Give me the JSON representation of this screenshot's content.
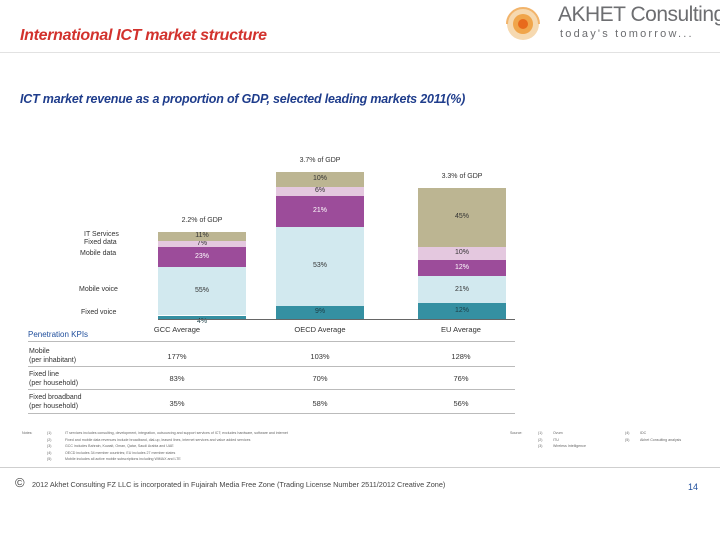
{
  "header": {
    "title": "International ICT market structure",
    "subtitle": "ICT market revenue as a proportion of GDP, selected leading markets 2011(%)",
    "logo_name": "AKHET Consulting",
    "logo_tagline": "today's tomorrow...",
    "logo_icon": "sun-logo-icon"
  },
  "colors": {
    "it_services": "#bcb592",
    "fixed_data": "#e4c8df",
    "mobile_data": "#9c4c9a",
    "mobile_voice": "#d2e9ef",
    "fixed_voice": "#3590a2",
    "title": "#d2322d",
    "subtitle": "#1f3d8c"
  },
  "chart_data": {
    "type": "bar",
    "stacked": true,
    "normalized": true,
    "categories": [
      "GCC Average",
      "OECD Average",
      "EU Average"
    ],
    "gdp_share_labels": [
      "2.2% of GDP",
      "3.7% of GDP",
      "3.3% of GDP"
    ],
    "gdp_share": [
      2.2,
      3.7,
      3.3
    ],
    "series": [
      {
        "name": "Fixed voice",
        "values": [
          4,
          9,
          12
        ],
        "labels": [
          "4%",
          "9%",
          "12%"
        ]
      },
      {
        "name": "Mobile voice",
        "values": [
          55,
          53,
          21
        ],
        "labels": [
          "55%",
          "53%",
          "21%"
        ]
      },
      {
        "name": "Mobile data",
        "values": [
          23,
          21,
          12
        ],
        "labels": [
          "23%",
          "21%",
          "12%"
        ]
      },
      {
        "name": "Fixed data",
        "values": [
          7,
          6,
          10
        ],
        "labels": [
          "7%",
          "6%",
          "10%"
        ]
      },
      {
        "name": "IT Services",
        "values": [
          11,
          10,
          45
        ],
        "labels": [
          "11%",
          "10%",
          "45%"
        ]
      }
    ],
    "legend_labels": [
      "IT Services",
      "Fixed data",
      "Mobile data",
      "Mobile voice",
      "Fixed voice"
    ]
  },
  "kpis": {
    "title": "Penetration KPIs",
    "rows": [
      {
        "label_line1": "Mobile",
        "label_line2": "(per inhabitant)",
        "values": [
          "177%",
          "103%",
          "128%"
        ]
      },
      {
        "label_line1": "Fixed line",
        "label_line2": "(per household)",
        "values": [
          "83%",
          "70%",
          "76%"
        ]
      },
      {
        "label_line1": "Fixed broadband",
        "label_line2": "(per household)",
        "values": [
          "35%",
          "58%",
          "56%"
        ]
      }
    ]
  },
  "notes": {
    "heading": "Notes:",
    "markers": [
      "(1)",
      "(2)",
      "(3)",
      "(4)",
      "(5)"
    ],
    "lines": [
      "IT services includes consulting, development, integration, outsourcing and support services of ICT; excludes hardware, software and internet",
      "Fixed and mobile data revenues include broadband, dial-up, leased lines, internet services and value added services",
      "GCC includes Bahrain, Kuwait, Oman, Qatar, Saudi Arabia and UAE",
      "OECD includes 34 member countries; EU includes 27 member states",
      "Mobile includes all active mobile subscriptions including WiMAX and LTE"
    ],
    "sources_heading": "Source:",
    "source_markers": [
      "(1)",
      "(2)",
      "(3)"
    ],
    "sources": [
      "Ovum",
      "ITU",
      "Wireless Intelligence"
    ],
    "source_markers2": [
      "(4)",
      "(5)"
    ],
    "sources2": [
      "IDC",
      "Akhet Consulting analysis"
    ]
  },
  "footer": {
    "copyright_symbol": "©",
    "text": "2012 Akhet Consulting FZ LLC is incorporated in Fujairah Media Free Zone (Trading License Number 2511/2012 Creative Zone)",
    "page_number": "14"
  }
}
